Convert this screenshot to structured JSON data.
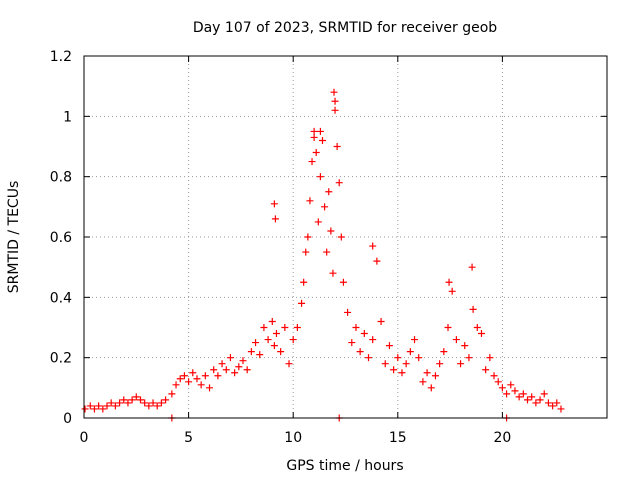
{
  "chart_data": {
    "type": "scatter",
    "title": "Day 107 of 2023, SRMTID for receiver geob",
    "xlabel": "GPS time / hours",
    "ylabel": "SRMTID / TECUs",
    "xlim": [
      0,
      25
    ],
    "ylim": [
      0,
      1.2
    ],
    "xticks": [
      0,
      5,
      10,
      15,
      20
    ],
    "xtick_labels": [
      "0",
      "5",
      "10",
      "15",
      "20"
    ],
    "yticks": [
      0,
      0.2,
      0.4,
      0.6,
      0.8,
      1.0,
      1.2
    ],
    "ytick_labels": [
      "0",
      "0.2",
      "0.4",
      "0.6",
      "0.8",
      "1",
      "1.2"
    ],
    "grid": true,
    "marker": "+",
    "series": [
      {
        "name": "SRMTID",
        "color": "#ff0000",
        "x": [
          0.05,
          0.3,
          0.5,
          0.7,
          0.9,
          1.1,
          1.3,
          1.5,
          1.7,
          1.9,
          2.1,
          2.3,
          2.5,
          2.7,
          2.9,
          3.1,
          3.3,
          3.5,
          3.7,
          3.9,
          4.2,
          4.4,
          4.6,
          4.8,
          5.0,
          5.2,
          5.4,
          5.6,
          5.8,
          6.0,
          6.2,
          6.4,
          6.6,
          6.8,
          7.0,
          7.2,
          7.4,
          7.6,
          7.8,
          8.0,
          8.2,
          8.4,
          8.6,
          8.8,
          9.0,
          9.1,
          9.2,
          9.4,
          9.6,
          9.8,
          10.0,
          10.2,
          10.4,
          10.5,
          10.6,
          10.7,
          10.8,
          10.9,
          11.0,
          11.1,
          11.2,
          11.3,
          11.4,
          11.5,
          11.6,
          11.7,
          11.8,
          11.9,
          12.0,
          12.1,
          12.2,
          12.3,
          12.4,
          12.6,
          12.8,
          13.0,
          13.2,
          13.4,
          13.6,
          13.8,
          14.0,
          14.2,
          14.4,
          14.6,
          14.8,
          15.0,
          15.2,
          15.4,
          15.6,
          15.8,
          16.0,
          16.2,
          16.4,
          16.6,
          16.8,
          17.0,
          17.2,
          17.4,
          17.6,
          17.8,
          18.0,
          18.2,
          18.4,
          18.6,
          18.8,
          19.0,
          19.2,
          19.4,
          19.6,
          19.8,
          20.0,
          20.2,
          20.4,
          20.6,
          20.8,
          21.0,
          21.2,
          21.4,
          21.6,
          21.8,
          22.0,
          22.2,
          22.4,
          22.6,
          22.8,
          4.2,
          12.2,
          20.2,
          9.1,
          9.15,
          11.95,
          12.0,
          11.0,
          11.3,
          13.8,
          18.55,
          17.45
        ],
        "y": [
          0.03,
          0.04,
          0.03,
          0.04,
          0.03,
          0.04,
          0.05,
          0.04,
          0.05,
          0.06,
          0.05,
          0.06,
          0.07,
          0.06,
          0.05,
          0.04,
          0.05,
          0.04,
          0.05,
          0.06,
          0.08,
          0.11,
          0.13,
          0.14,
          0.12,
          0.15,
          0.13,
          0.11,
          0.14,
          0.1,
          0.16,
          0.14,
          0.18,
          0.16,
          0.2,
          0.15,
          0.17,
          0.19,
          0.16,
          0.22,
          0.25,
          0.21,
          0.3,
          0.26,
          0.32,
          0.24,
          0.28,
          0.22,
          0.3,
          0.18,
          0.26,
          0.3,
          0.38,
          0.45,
          0.55,
          0.6,
          0.72,
          0.85,
          0.95,
          0.88,
          0.65,
          0.8,
          0.92,
          0.7,
          0.55,
          0.75,
          0.62,
          0.48,
          1.05,
          0.9,
          0.78,
          0.6,
          0.45,
          0.35,
          0.25,
          0.3,
          0.22,
          0.28,
          0.2,
          0.26,
          0.52,
          0.32,
          0.18,
          0.24,
          0.16,
          0.2,
          0.15,
          0.18,
          0.22,
          0.26,
          0.2,
          0.12,
          0.15,
          0.1,
          0.14,
          0.18,
          0.22,
          0.3,
          0.42,
          0.26,
          0.18,
          0.24,
          0.2,
          0.36,
          0.3,
          0.28,
          0.16,
          0.2,
          0.14,
          0.12,
          0.1,
          0.08,
          0.11,
          0.09,
          0.07,
          0.08,
          0.06,
          0.07,
          0.05,
          0.06,
          0.08,
          0.05,
          0.04,
          0.05,
          0.03,
          0.0,
          0.0,
          0.0,
          0.71,
          0.66,
          1.08,
          1.02,
          0.93,
          0.95,
          0.57,
          0.5,
          0.45
        ]
      }
    ]
  }
}
